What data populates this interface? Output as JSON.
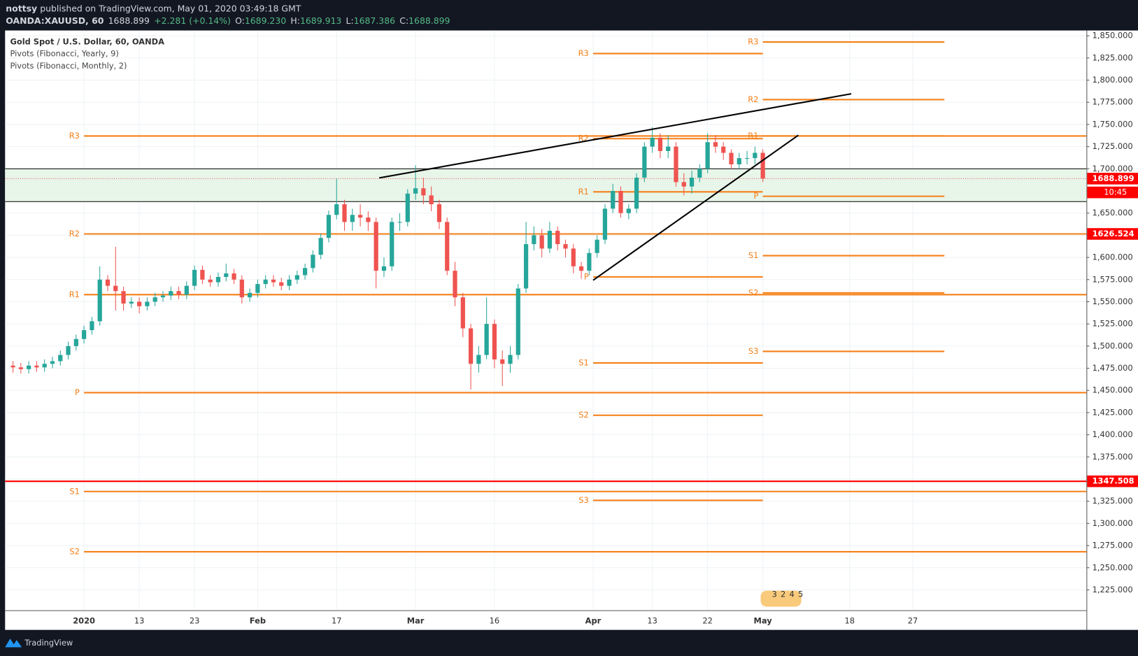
{
  "header": {
    "publisher": "nottsy",
    "published": "published on TradingView.com, May 01, 2020 03:49:18 GMT",
    "symbol": "OANDA:XAUUSD, 60",
    "last": "1688.899",
    "change": "+2.281 (+0.14%)",
    "ohlc": [
      {
        "label": "O:",
        "value": "1689.230"
      },
      {
        "label": "H:",
        "value": "1689.913"
      },
      {
        "label": "L:",
        "value": "1687.386"
      },
      {
        "label": "C:",
        "value": "1688.899"
      }
    ]
  },
  "footer": {
    "brand": "TradingView"
  },
  "chart_data": {
    "type": "candlestick",
    "legend": [
      "Gold Spot / U.S. Dollar, 60, OANDA",
      "Pivots (Fibonacci, Yearly, 9)",
      "Pivots (Fibonacci, Monthly, 2)"
    ],
    "colors": {
      "up": "#26a69a",
      "down": "#ef5350",
      "pivot": "#f57f17",
      "trend": "#000000",
      "hline": "#ff0000",
      "zone": "#e8f5e9",
      "tag": "#ff0000",
      "grid": "#eef2f5"
    },
    "grid": true,
    "xlim": [
      -10,
      127
    ],
    "ylim": [
      1202,
      1856
    ],
    "xticks": [
      {
        "value": 0,
        "label": "2020"
      },
      {
        "value": 7,
        "label": "13"
      },
      {
        "value": 14,
        "label": "23"
      },
      {
        "value": 22,
        "label": "Feb"
      },
      {
        "value": 32,
        "label": "17"
      },
      {
        "value": 42,
        "label": "Mar"
      },
      {
        "value": 52,
        "label": "16"
      },
      {
        "value": 64.5,
        "label": "Apr"
      },
      {
        "value": 72,
        "label": "13"
      },
      {
        "value": 79,
        "label": "22"
      },
      {
        "value": 86,
        "label": "May"
      },
      {
        "value": 97,
        "label": "18"
      },
      {
        "value": 105,
        "label": "27"
      }
    ],
    "yticks": [
      {
        "value": 1225,
        "label": "1,225.000"
      },
      {
        "value": 1250,
        "label": "1,250.000"
      },
      {
        "value": 1275,
        "label": "1,275.000"
      },
      {
        "value": 1300,
        "label": "1,300.000"
      },
      {
        "value": 1325,
        "label": "1,325.000"
      },
      {
        "value": 1350,
        "label": "1,350.000"
      },
      {
        "value": 1375,
        "label": "1,375.000"
      },
      {
        "value": 1400,
        "label": "1,400.000"
      },
      {
        "value": 1425,
        "label": "1,425.000"
      },
      {
        "value": 1450,
        "label": "1,450.000"
      },
      {
        "value": 1475,
        "label": "1,475.000"
      },
      {
        "value": 1500,
        "label": "1,500.000"
      },
      {
        "value": 1525,
        "label": "1,525.000"
      },
      {
        "value": 1550,
        "label": "1,550.000"
      },
      {
        "value": 1575,
        "label": "1,575.000"
      },
      {
        "value": 1600,
        "label": "1,600.000"
      },
      {
        "value": 1625,
        "label": "1,625.000"
      },
      {
        "value": 1650,
        "label": "1,650.000"
      },
      {
        "value": 1675,
        "label": "1,675.000"
      },
      {
        "value": 1700,
        "label": "1,700.000"
      },
      {
        "value": 1725,
        "label": "1,725.000"
      },
      {
        "value": 1750,
        "label": "1,750.000"
      },
      {
        "value": 1775,
        "label": "1,775.000"
      },
      {
        "value": 1800,
        "label": "1,800.000"
      },
      {
        "value": 1825,
        "label": "1,825.000"
      },
      {
        "value": 1850,
        "label": "1,850.000"
      }
    ],
    "x": [
      -9,
      -8,
      -7,
      -6,
      -5,
      -4,
      -3,
      -2,
      -1,
      0,
      1,
      2,
      3,
      4,
      5,
      6,
      7,
      8,
      9,
      10,
      11,
      12,
      13,
      14,
      15,
      16,
      17,
      18,
      19,
      20,
      21,
      22,
      23,
      24,
      25,
      26,
      27,
      28,
      29,
      30,
      31,
      32,
      33,
      34,
      35,
      36,
      37,
      38,
      39,
      40,
      41,
      42,
      43,
      44,
      45,
      46,
      47,
      48,
      49,
      50,
      51,
      52,
      53,
      54,
      55,
      56,
      57,
      58,
      59,
      60,
      61,
      62,
      63,
      64,
      65,
      66,
      67,
      68,
      69,
      70,
      71,
      72,
      73,
      74,
      75,
      76,
      77,
      78,
      79,
      80,
      81,
      82,
      83,
      84,
      85,
      86
    ],
    "open": [
      1478,
      1476,
      1474,
      1478,
      1476,
      1480,
      1483,
      1490,
      1500,
      1508,
      1518,
      1528,
      1575,
      1568,
      1562,
      1548,
      1550,
      1545,
      1550,
      1555,
      1557,
      1562,
      1558,
      1568,
      1586,
      1575,
      1572,
      1578,
      1582,
      1575,
      1555,
      1560,
      1570,
      1575,
      1572,
      1568,
      1575,
      1580,
      1588,
      1603,
      1622,
      1648,
      1660,
      1640,
      1648,
      1645,
      1640,
      1585,
      1590,
      1640,
      1640,
      1672,
      1678,
      1670,
      1660,
      1640,
      1585,
      1555,
      1520,
      1480,
      1490,
      1525,
      1485,
      1480,
      1490,
      1565,
      1615,
      1625,
      1610,
      1630,
      1615,
      1610,
      1590,
      1585,
      1605,
      1620,
      1655,
      1675,
      1650,
      1655,
      1690,
      1725,
      1735,
      1720,
      1725,
      1685,
      1680,
      1690,
      1700,
      1730,
      1725,
      1718,
      1705,
      1712,
      1712,
      1718
    ],
    "high": [
      1483,
      1481,
      1483,
      1483,
      1485,
      1488,
      1495,
      1505,
      1513,
      1523,
      1533,
      1590,
      1580,
      1612,
      1567,
      1555,
      1555,
      1555,
      1560,
      1562,
      1567,
      1567,
      1573,
      1591,
      1591,
      1580,
      1583,
      1593,
      1587,
      1580,
      1565,
      1575,
      1580,
      1580,
      1577,
      1580,
      1585,
      1593,
      1608,
      1627,
      1653,
      1689,
      1665,
      1655,
      1660,
      1652,
      1645,
      1600,
      1645,
      1650,
      1677,
      1704,
      1690,
      1680,
      1665,
      1645,
      1595,
      1560,
      1525,
      1500,
      1555,
      1530,
      1495,
      1500,
      1570,
      1640,
      1635,
      1632,
      1640,
      1635,
      1620,
      1615,
      1595,
      1610,
      1625,
      1660,
      1683,
      1680,
      1660,
      1695,
      1730,
      1747,
      1740,
      1738,
      1730,
      1695,
      1698,
      1705,
      1740,
      1738,
      1730,
      1722,
      1718,
      1720,
      1725,
      1722
    ],
    "low": [
      1470,
      1469,
      1469,
      1471,
      1471,
      1475,
      1478,
      1485,
      1495,
      1503,
      1513,
      1523,
      1562,
      1540,
      1540,
      1543,
      1537,
      1540,
      1545,
      1550,
      1552,
      1553,
      1553,
      1563,
      1570,
      1567,
      1567,
      1573,
      1570,
      1548,
      1550,
      1555,
      1565,
      1567,
      1563,
      1563,
      1570,
      1575,
      1583,
      1598,
      1617,
      1643,
      1630,
      1630,
      1635,
      1630,
      1565,
      1578,
      1585,
      1630,
      1635,
      1665,
      1660,
      1652,
      1632,
      1580,
      1545,
      1510,
      1451,
      1470,
      1485,
      1475,
      1455,
      1470,
      1485,
      1560,
      1608,
      1600,
      1605,
      1608,
      1600,
      1582,
      1576,
      1580,
      1600,
      1615,
      1650,
      1645,
      1643,
      1650,
      1685,
      1718,
      1712,
      1712,
      1680,
      1670,
      1672,
      1685,
      1695,
      1718,
      1710,
      1700,
      1700,
      1705,
      1705,
      1685
    ],
    "close": [
      1476,
      1474,
      1478,
      1476,
      1480,
      1483,
      1490,
      1500,
      1508,
      1518,
      1528,
      1575,
      1568,
      1562,
      1548,
      1550,
      1545,
      1550,
      1555,
      1557,
      1562,
      1558,
      1568,
      1586,
      1575,
      1572,
      1578,
      1582,
      1575,
      1555,
      1560,
      1570,
      1575,
      1572,
      1568,
      1575,
      1580,
      1588,
      1603,
      1622,
      1648,
      1660,
      1640,
      1648,
      1645,
      1640,
      1585,
      1590,
      1640,
      1640,
      1672,
      1678,
      1670,
      1660,
      1640,
      1585,
      1555,
      1520,
      1480,
      1490,
      1525,
      1485,
      1480,
      1490,
      1565,
      1615,
      1625,
      1610,
      1630,
      1615,
      1610,
      1590,
      1585,
      1605,
      1620,
      1655,
      1675,
      1650,
      1655,
      1690,
      1725,
      1735,
      1720,
      1725,
      1685,
      1680,
      1690,
      1700,
      1730,
      1725,
      1718,
      1705,
      1712,
      1712,
      1718,
      1689
    ],
    "pivots": [
      {
        "x": [
          0,
          127
        ],
        "levels": [
          {
            "label": "R3",
            "value": 1737
          },
          {
            "label": "R2",
            "value": 1626.5
          },
          {
            "label": "R1",
            "value": 1558
          },
          {
            "label": "P",
            "value": 1447.5
          },
          {
            "label": "S1",
            "value": 1336
          },
          {
            "label": "S2",
            "value": 1268
          }
        ]
      },
      {
        "x": [
          64.5,
          86
        ],
        "levels": [
          {
            "label": "R3",
            "value": 1830
          },
          {
            "label": "R2",
            "value": 1734
          },
          {
            "label": "R1",
            "value": 1674
          },
          {
            "label": "P",
            "value": 1578
          },
          {
            "label": "S1",
            "value": 1481
          },
          {
            "label": "S2",
            "value": 1422
          },
          {
            "label": "S3",
            "value": 1326
          }
        ]
      },
      {
        "x": [
          86,
          109
        ],
        "levels": [
          {
            "label": "R3",
            "value": 1843
          },
          {
            "label": "R2",
            "value": 1778
          },
          {
            "label": "R1",
            "value": 1737
          },
          {
            "label": "P",
            "value": 1669
          },
          {
            "label": "S1",
            "value": 1602
          },
          {
            "label": "S2",
            "value": 1560
          },
          {
            "label": "S3",
            "value": 1494
          }
        ]
      }
    ],
    "trendlines": [
      {
        "x": [
          37.4,
          97.2
        ],
        "y": [
          1689.7,
          1784.6
        ]
      },
      {
        "x": [
          64.5,
          90.5
        ],
        "y": [
          1574.3,
          1737.9
        ]
      }
    ],
    "zone": {
      "top": 1700,
      "bottom": 1663
    },
    "hline": 1347.508,
    "last_price": 1688.899,
    "countdown": "10:45",
    "price_tags": [
      1626.524,
      1347.508
    ],
    "event_badges": [
      "3",
      "2",
      "4",
      "5"
    ]
  }
}
